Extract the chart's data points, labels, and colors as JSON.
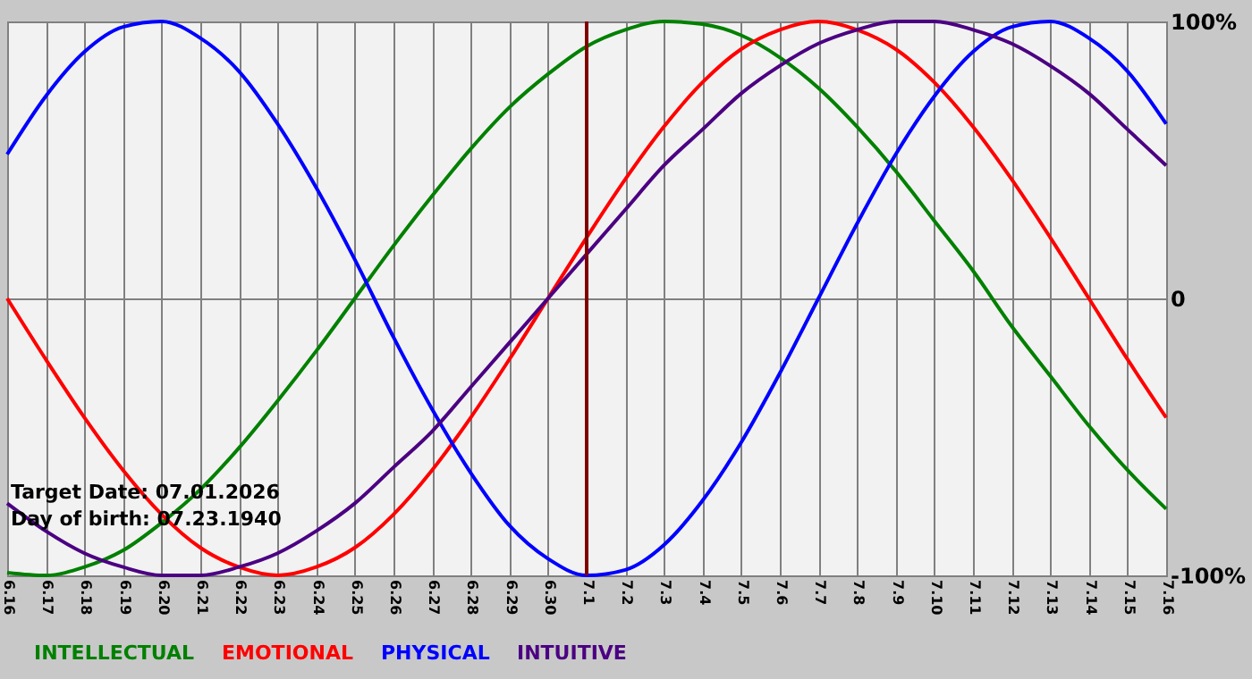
{
  "chart_data": {
    "type": "line",
    "categories": [
      "6.16",
      "6.17",
      "6.18",
      "6.19",
      "6.20",
      "6.21",
      "6.22",
      "6.23",
      "6.24",
      "6.25",
      "6.26",
      "6.27",
      "6.28",
      "6.29",
      "6.30",
      "7.1",
      "7.2",
      "7.3",
      "7.4",
      "7.5",
      "7.6",
      "7.7",
      "7.8",
      "7.9",
      "7.10",
      "7.11",
      "7.12",
      "7.13",
      "7.14",
      "7.15",
      "7.16"
    ],
    "series": [
      {
        "name": "INTELLECTUAL",
        "color": "#008000",
        "values": [
          -99,
          -100,
          -97,
          -91,
          -81,
          -69,
          -54,
          -37,
          -19,
          0,
          19,
          37,
          54,
          69,
          81,
          91,
          97,
          100,
          99,
          95,
          87,
          76,
          62,
          46,
          28,
          10,
          -10,
          -28,
          -46,
          -62,
          -76
        ]
      },
      {
        "name": "EMOTIONAL",
        "color": "#ff0000",
        "values": [
          0,
          -22,
          -43,
          -62,
          -78,
          -90,
          -97,
          -100,
          -97,
          -90,
          -78,
          -62,
          -43,
          -22,
          0,
          22,
          43,
          62,
          78,
          90,
          97,
          100,
          97,
          90,
          78,
          62,
          43,
          22,
          0,
          -22,
          -43
        ]
      },
      {
        "name": "PHYSICAL",
        "color": "#0000ff",
        "values": [
          52,
          73,
          89,
          98,
          100,
          94,
          82,
          63,
          40,
          14,
          -14,
          -40,
          -63,
          -82,
          -94,
          -100,
          -98,
          -89,
          -73,
          -52,
          -27,
          0,
          27,
          52,
          73,
          89,
          98,
          100,
          94,
          82,
          63
        ]
      },
      {
        "name": "INTUITIVE",
        "color": "#4b0082",
        "values": [
          -74,
          -84,
          -92,
          -97,
          -100,
          -100,
          -97,
          -92,
          -84,
          -74,
          -61,
          -48,
          -32,
          -16,
          0,
          16,
          32,
          48,
          61,
          74,
          84,
          92,
          97,
          100,
          100,
          97,
          92,
          84,
          74,
          61,
          48
        ]
      }
    ],
    "ylim": [
      -100,
      100
    ],
    "yticks": [
      {
        "value": -100,
        "label": "-100%"
      },
      0,
      {
        "value": 100,
        "label": "100%"
      }
    ],
    "ref_lines": [
      {
        "axis": "x",
        "value": "7.1",
        "color": "#800000"
      }
    ],
    "annotations": [
      "Target Date: 07.01.2026",
      "Day of birth: 07.23.1940"
    ],
    "grid": true,
    "legend": "bottom left",
    "marker": "none",
    "line_style": "solid"
  }
}
